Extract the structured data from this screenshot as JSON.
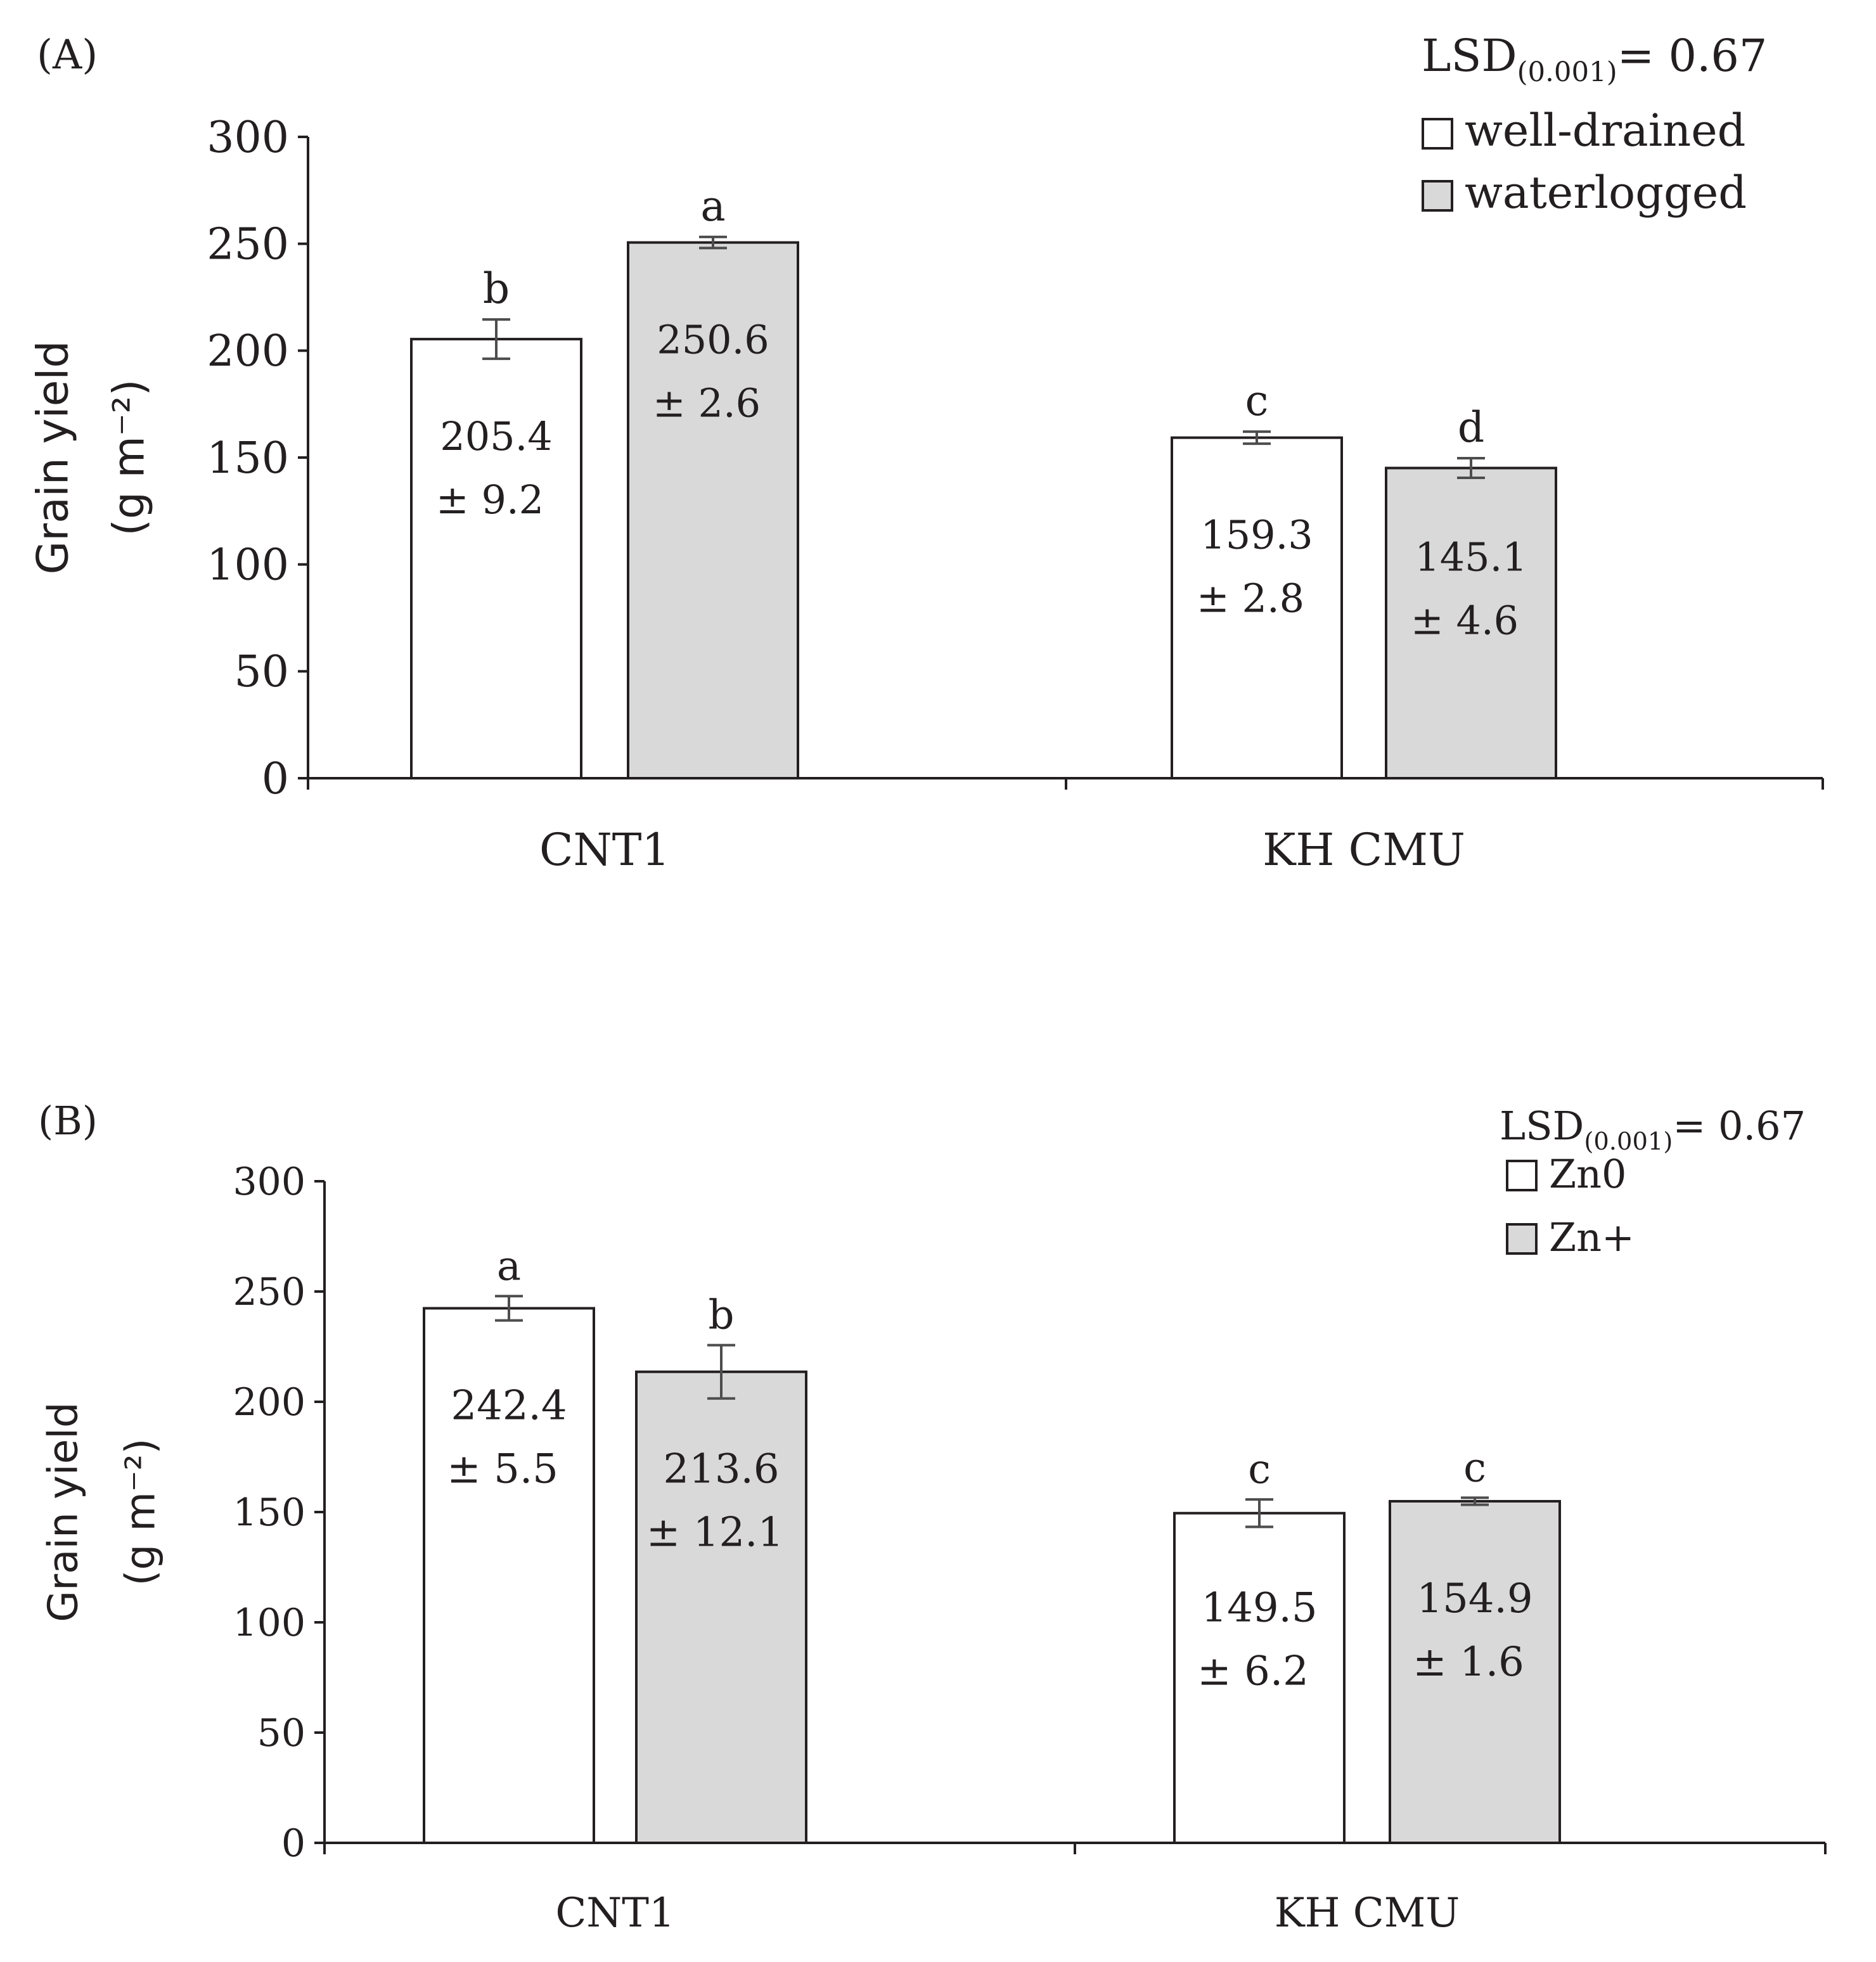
{
  "colors": {
    "well_drained": "#ffffff",
    "waterlogged": "#d9d9d9",
    "Zn0": "#ffffff",
    "Zn+": "#d9d9d9",
    "axis": "#231f20"
  },
  "chart_data": [
    {
      "type": "bar",
      "panel_label": "(A)",
      "title": "",
      "ylabel": "Grain yield",
      "ylabel_unit": "(g m⁻²)",
      "ylim": [
        0,
        300
      ],
      "yticks": [
        0,
        50,
        100,
        150,
        200,
        250,
        300
      ],
      "categories": [
        "CNT1",
        "KH CMU"
      ],
      "legend_position": "top-right",
      "annotation": "LSD",
      "annotation_sub": "(0.001)",
      "annotation_value": "= 0.67",
      "series": [
        {
          "name": "well-drained",
          "color_key": "well_drained",
          "values": [
            205.4,
            159.3
          ],
          "errors": [
            9.2,
            2.8
          ],
          "letters": [
            "b",
            "c"
          ],
          "value_labels": [
            "205.4",
            "159.3"
          ],
          "error_labels": [
            "± 9.2",
            "± 2.8"
          ]
        },
        {
          "name": "waterlogged",
          "color_key": "waterlogged",
          "values": [
            250.6,
            145.1
          ],
          "errors": [
            2.6,
            4.6
          ],
          "letters": [
            "a",
            "d"
          ],
          "value_labels": [
            "250.6",
            "145.1"
          ],
          "error_labels": [
            "± 2.6",
            "± 4.6"
          ]
        }
      ]
    },
    {
      "type": "bar",
      "panel_label": "(B)",
      "title": "",
      "ylabel": "Grain yield",
      "ylabel_unit": "(g m⁻²)",
      "ylim": [
        0,
        300
      ],
      "yticks": [
        0,
        50,
        100,
        150,
        200,
        250,
        300
      ],
      "categories": [
        "CNT1",
        "KH CMU"
      ],
      "legend_position": "top-right",
      "annotation": "LSD",
      "annotation_sub": "(0.001)",
      "annotation_value": "= 0.67",
      "series": [
        {
          "name": "Zn0",
          "color_key": "Zn0",
          "values": [
            242.4,
            149.5
          ],
          "errors": [
            5.5,
            6.2
          ],
          "letters": [
            "a",
            "c"
          ],
          "value_labels": [
            "242.4",
            "149.5"
          ],
          "error_labels": [
            "± 5.5",
            "± 6.2"
          ]
        },
        {
          "name": "Zn+",
          "color_key": "Zn+",
          "values": [
            213.6,
            154.9
          ],
          "errors": [
            12.1,
            1.6
          ],
          "letters": [
            "b",
            "c"
          ],
          "value_labels": [
            "213.6",
            "154.9"
          ],
          "error_labels": [
            "± 12.1",
            "± 1.6"
          ]
        }
      ]
    }
  ]
}
